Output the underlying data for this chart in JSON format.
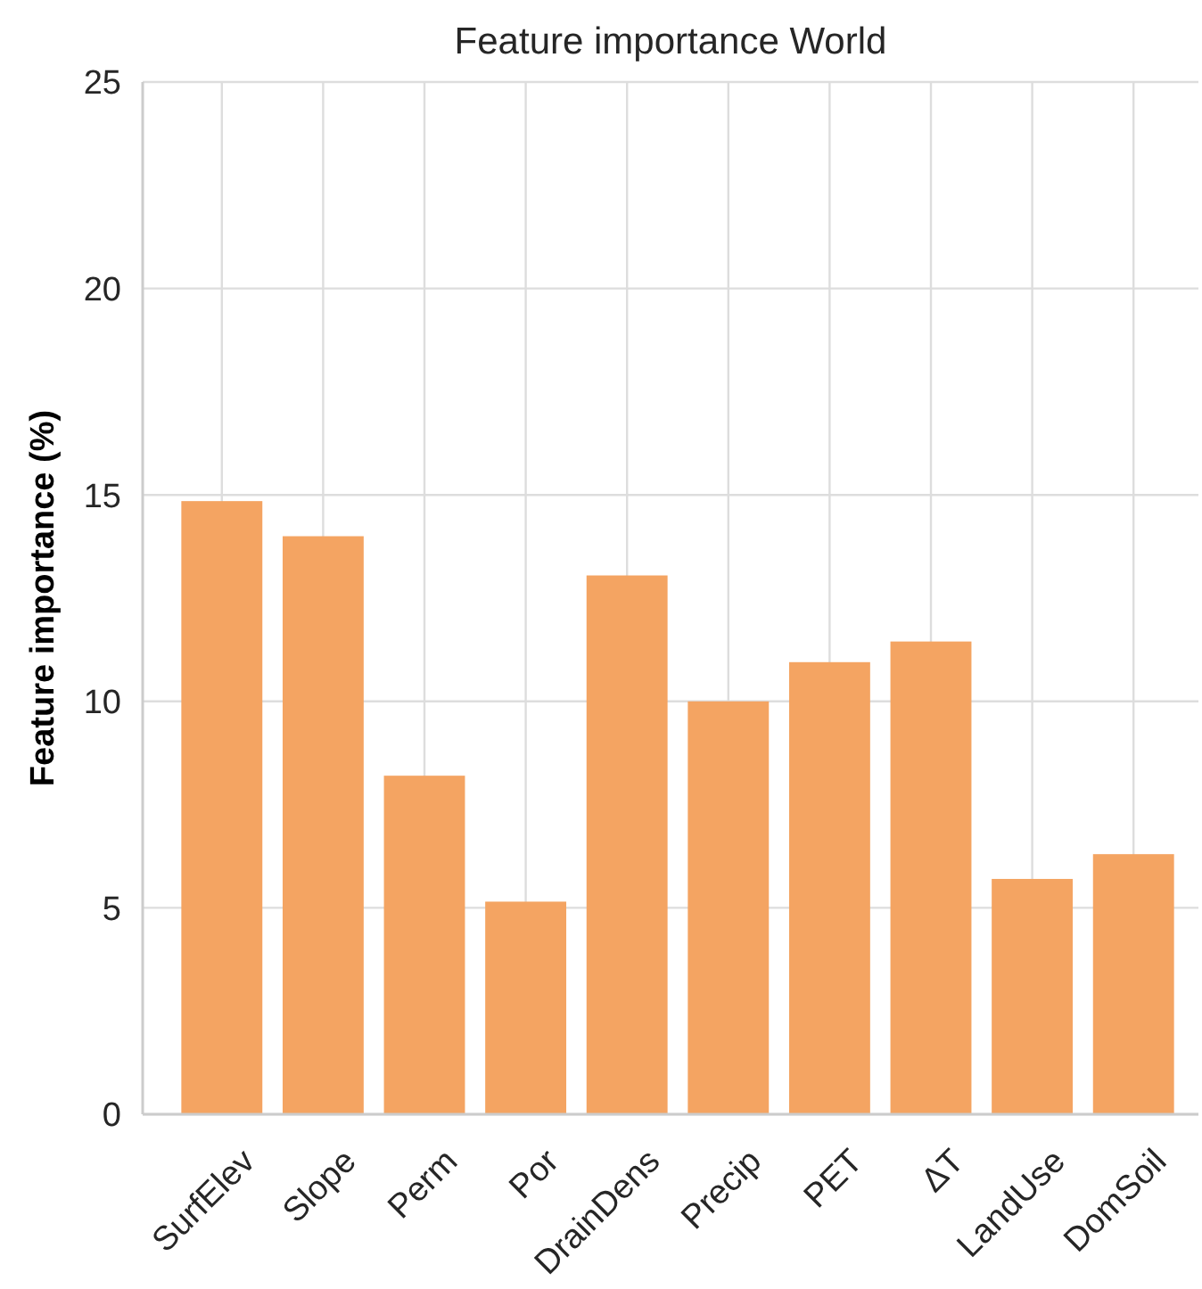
{
  "chart_data": {
    "type": "bar",
    "title": "Feature importance World",
    "ylabel": "Feature importance (%)",
    "categories": [
      "SurfElev",
      "Slope",
      "Perm",
      "Por",
      "DrainDens",
      "Precip",
      "PET",
      "ΔT",
      "LandUse",
      "DomSoil"
    ],
    "values": [
      14.85,
      14.0,
      8.2,
      5.15,
      13.05,
      10.0,
      10.95,
      11.45,
      5.7,
      6.3
    ],
    "color": "#f4a462",
    "ylim": [
      0,
      25
    ],
    "yticks": [
      0,
      5,
      10,
      15,
      20,
      25
    ],
    "grid": true
  }
}
